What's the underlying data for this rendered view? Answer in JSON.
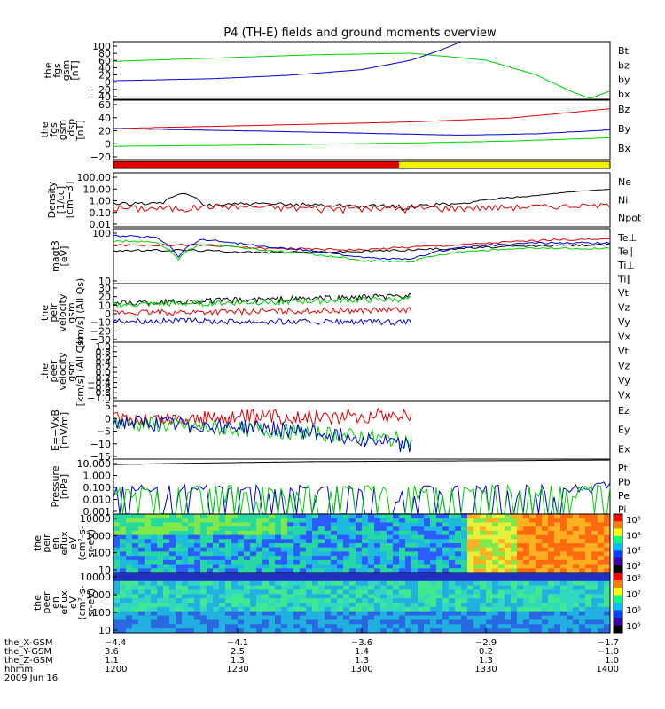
{
  "title": "P4 (TH-E) fields and ground moments overview",
  "colors": {
    "black": "#000000",
    "red": "#e00000",
    "green": "#00d000",
    "blue": "#0000d0",
    "yellow": "#f0f000"
  },
  "chart_data": [
    {
      "type": "line",
      "ylabel": [
        "the",
        "fgs",
        "gsm",
        "[nT]"
      ],
      "yticks": [
        "100",
        "80",
        "60",
        "40",
        "20",
        "0",
        "−20",
        "−40"
      ],
      "legend": [
        {
          "label": "Bt",
          "color": "black"
        },
        {
          "label": "bz",
          "color": "red"
        },
        {
          "label": "by",
          "color": "green"
        },
        {
          "label": "bx",
          "color": "blue"
        }
      ],
      "ylim": [
        -40,
        100
      ],
      "series": [
        {
          "name": "by",
          "color": "green",
          "x": [
            0,
            0.2,
            0.4,
            0.6,
            0.75,
            0.85,
            0.92,
            0.96,
            1.0
          ],
          "y": [
            52,
            60,
            68,
            72,
            55,
            20,
            -20,
            -38,
            -20
          ]
        },
        {
          "name": "bx",
          "color": "blue",
          "x": [
            0,
            0.2,
            0.35,
            0.5,
            0.6,
            0.66,
            0.7
          ],
          "y": [
            5,
            10,
            18,
            32,
            55,
            80,
            100
          ]
        }
      ]
    },
    {
      "type": "line",
      "ylabel": [
        "the",
        "fgs",
        "gsm",
        "_dsp",
        "[nT]"
      ],
      "yticks": [
        "60",
        "40",
        "20",
        "0",
        "−20"
      ],
      "legend": [
        {
          "label": "Bz",
          "color": "red"
        },
        {
          "label": "By",
          "color": "green"
        },
        {
          "label": "Bx",
          "color": "blue"
        }
      ],
      "ylim": [
        -25,
        65
      ],
      "series": [
        {
          "name": "Bz",
          "color": "red",
          "x": [
            0,
            0.3,
            0.6,
            0.8,
            0.9,
            1.0
          ],
          "y": [
            22,
            27,
            32,
            38,
            45,
            52
          ]
        },
        {
          "name": "Bx",
          "color": "blue",
          "x": [
            0,
            0.3,
            0.5,
            0.7,
            0.85,
            1.0
          ],
          "y": [
            22,
            18,
            15,
            12,
            14,
            20
          ]
        },
        {
          "name": "By",
          "color": "green",
          "x": [
            0,
            0.3,
            0.6,
            0.8,
            1.0
          ],
          "y": [
            -5,
            -3,
            0,
            3,
            8
          ]
        }
      ]
    },
    {
      "type": "bar",
      "mode": "status",
      "segments": [
        {
          "from": 0,
          "to": 0.575,
          "color": "red"
        },
        {
          "from": 0.575,
          "to": 1,
          "color": "yellow"
        }
      ]
    },
    {
      "type": "line",
      "scale": "log",
      "ylabel": [
        "Density",
        "[1/cc]",
        "[cm−3]"
      ],
      "yticks": [
        "100.00",
        "10.00",
        "1.00",
        "0.10",
        "0.01"
      ],
      "legend": [
        {
          "label": "Ne",
          "color": "red"
        },
        {
          "label": "Ni",
          "color": "black"
        },
        {
          "label": "Npot",
          "color": "blue"
        }
      ],
      "ylim": [
        0.01,
        100
      ],
      "series": [
        {
          "name": "Ni",
          "color": "black",
          "x": [
            0,
            0.1,
            0.14,
            0.18,
            0.25,
            0.4,
            0.58,
            0.7,
            0.85,
            1.0
          ],
          "y": [
            0.5,
            0.6,
            3,
            0.4,
            0.5,
            0.45,
            0.3,
            0.5,
            2,
            6
          ]
        },
        {
          "name": "Ne",
          "color": "red",
          "x": [
            0,
            0.15,
            0.2,
            0.4,
            0.6,
            0.8,
            1.0
          ],
          "y": [
            0.25,
            0.25,
            0.35,
            0.25,
            0.25,
            0.3,
            0.4
          ]
        }
      ]
    },
    {
      "type": "line",
      "scale": "log",
      "ylabel": [
        "magt3",
        "[eV]"
      ],
      "yticks": [
        "100",
        "10"
      ],
      "legend": [
        {
          "label": "Te⊥",
          "color": "red"
        },
        {
          "label": "Te∥",
          "color": "black"
        },
        {
          "label": "Ti⊥",
          "color": "blue"
        },
        {
          "label": "Ti∥",
          "color": "green"
        }
      ],
      "ylim": [
        10,
        2000
      ],
      "series": [
        {
          "name": "Te⊥",
          "color": "red",
          "x": [
            0,
            0.15,
            0.3,
            0.5,
            0.7,
            0.9,
            1.0
          ],
          "y": [
            400,
            420,
            300,
            260,
            420,
            700,
            700
          ]
        },
        {
          "name": "Te∥",
          "color": "black",
          "x": [
            0,
            0.15,
            0.3,
            0.5,
            0.7,
            0.9,
            1.0
          ],
          "y": [
            240,
            250,
            200,
            220,
            300,
            400,
            420
          ]
        },
        {
          "name": "Ti⊥",
          "color": "blue",
          "x": [
            0,
            0.08,
            0.13,
            0.18,
            0.3,
            0.5,
            0.6,
            0.7,
            0.85,
            1.0
          ],
          "y": [
            1000,
            900,
            120,
            700,
            350,
            120,
            100,
            330,
            500,
            500
          ]
        },
        {
          "name": "Ti∥",
          "color": "green",
          "x": [
            0,
            0.08,
            0.13,
            0.18,
            0.3,
            0.5,
            0.6,
            0.7,
            0.85,
            1.0
          ],
          "y": [
            600,
            550,
            90,
            450,
            250,
            90,
            80,
            220,
            300,
            300
          ]
        }
      ]
    },
    {
      "type": "line",
      "ylabel": [
        "the",
        "peir",
        "velocity",
        "gsm",
        "[km/s] (All Qs)"
      ],
      "yticks": [
        "30",
        "20",
        "10",
        "0",
        "−10",
        "−20",
        "−30"
      ],
      "legend": [
        {
          "label": "Vt",
          "color": "black"
        },
        {
          "label": "Vz",
          "color": "red"
        },
        {
          "label": "Vy",
          "color": "green"
        },
        {
          "label": "Vx",
          "color": "blue"
        }
      ],
      "ylim": [
        -30,
        30
      ],
      "xrange": [
        0,
        0.6
      ],
      "series": [
        {
          "name": "Vt",
          "color": "black",
          "x": [
            0,
            0.6
          ],
          "y": [
            10,
            17
          ]
        },
        {
          "name": "Vy",
          "color": "green",
          "x": [
            0,
            0.6
          ],
          "y": [
            8,
            14
          ]
        },
        {
          "name": "Vz",
          "color": "red",
          "x": [
            0,
            0.6
          ],
          "y": [
            0,
            3
          ]
        },
        {
          "name": "Vx",
          "color": "blue",
          "x": [
            0,
            0.6
          ],
          "y": [
            -8,
            -10
          ]
        }
      ]
    },
    {
      "type": "line",
      "ylabel": [
        "the",
        "peer",
        "velocity",
        "gsm",
        "[km/s] (All Qs)"
      ],
      "yticks": [
        "1.0",
        "0.8",
        "0.6",
        "0.4",
        "0.2",
        "0.0",
        "−0.2",
        "−0.4",
        "−0.6",
        "−0.8",
        "−1.0"
      ],
      "legend": [
        {
          "label": "Vt",
          "color": "black"
        },
        {
          "label": "Vz",
          "color": "red"
        },
        {
          "label": "Vy",
          "color": "green"
        },
        {
          "label": "Vx",
          "color": "blue"
        }
      ],
      "ylim": [
        -1,
        1
      ],
      "series": []
    },
    {
      "type": "line",
      "ylabel": [
        "E=−VxB",
        "[mV/m]"
      ],
      "yticks": [
        "5",
        "0",
        "−5",
        "−10",
        "−15"
      ],
      "legend": [
        {
          "label": "Ez",
          "color": "red"
        },
        {
          "label": "Ey",
          "color": "green"
        },
        {
          "label": "Ex",
          "color": "blue"
        }
      ],
      "ylim": [
        -15,
        7
      ],
      "xrange": [
        0,
        0.6
      ],
      "series": [
        {
          "name": "Ez",
          "color": "red",
          "x": [
            0,
            0.3,
            0.6
          ],
          "y": [
            0,
            1,
            2
          ]
        },
        {
          "name": "Ey",
          "color": "green",
          "x": [
            0,
            0.2,
            0.4,
            0.6
          ],
          "y": [
            -1,
            -3,
            -5,
            -8
          ]
        },
        {
          "name": "Ex",
          "color": "blue",
          "x": [
            0,
            0.3,
            0.5,
            0.6
          ],
          "y": [
            -1,
            -3,
            -7,
            -10
          ]
        }
      ]
    },
    {
      "type": "line",
      "scale": "log",
      "ylabel": [
        "Pressure",
        "[nPa]"
      ],
      "yticks": [
        "10.000",
        "1.000",
        "0.100",
        "0.010",
        "0.001"
      ],
      "legend": [
        {
          "label": "Pt",
          "color": "black"
        },
        {
          "label": "Pb",
          "color": "red"
        },
        {
          "label": "Pe",
          "color": "green"
        },
        {
          "label": "Pi",
          "color": "blue"
        }
      ],
      "ylim": [
        0.0005,
        30
      ],
      "series": [
        {
          "name": "Pt",
          "color": "black",
          "x": [
            0,
            0.2,
            0.4,
            0.6,
            0.8,
            1.0
          ],
          "y": [
            10,
            14,
            18,
            20,
            22,
            25
          ]
        },
        {
          "name": "Pi",
          "color": "blue",
          "x": [
            0,
            0.2,
            0.4,
            0.6,
            0.7,
            0.8,
            0.9,
            1.0
          ],
          "y": [
            0.04,
            0.02,
            0.015,
            0.008,
            0.006,
            0.02,
            0.06,
            0.2
          ]
        },
        {
          "name": "Pe",
          "color": "green",
          "x": [
            0,
            0.2,
            0.4,
            0.6,
            0.8,
            1.0
          ],
          "y": [
            0.008,
            0.006,
            0.006,
            0.007,
            0.01,
            0.02
          ]
        }
      ]
    },
    {
      "type": "heatmap",
      "ylabel": [
        "the",
        "peir",
        "en",
        "eflux",
        "eV",
        "(cm²-s-",
        "sr-eV)"
      ],
      "yticks": [
        "10000",
        "1000",
        "100",
        "10"
      ],
      "colorbar": [
        "10⁶",
        "10⁵",
        "10⁴",
        "10³"
      ]
    },
    {
      "type": "heatmap",
      "ylabel": [
        "the",
        "peer",
        "en",
        "eflux",
        "eV",
        "(cm²-s-",
        "sr-eV)"
      ],
      "yticks": [
        "10000",
        "1000",
        "100",
        "10"
      ],
      "colorbar": [
        "10⁸",
        "10⁷",
        "10⁶",
        "10⁵"
      ]
    }
  ],
  "xaxis": {
    "rows": [
      {
        "label": "the_X-GSM",
        "values": [
          "−4.4",
          "−4.1",
          "−3.6",
          "−2.9",
          "−1.7"
        ]
      },
      {
        "label": "the_Y-GSM",
        "values": [
          "3.6",
          "2.5",
          "1.4",
          "0.2",
          "−1.0"
        ]
      },
      {
        "label": "the_Z-GSM",
        "values": [
          "1.1",
          "1.3",
          "1.3",
          "1.3",
          "1.0"
        ]
      },
      {
        "label": "hhmm",
        "values": [
          "1200",
          "1230",
          "1300",
          "1330",
          "1400"
        ]
      }
    ],
    "date": "2009 Jun 16"
  }
}
